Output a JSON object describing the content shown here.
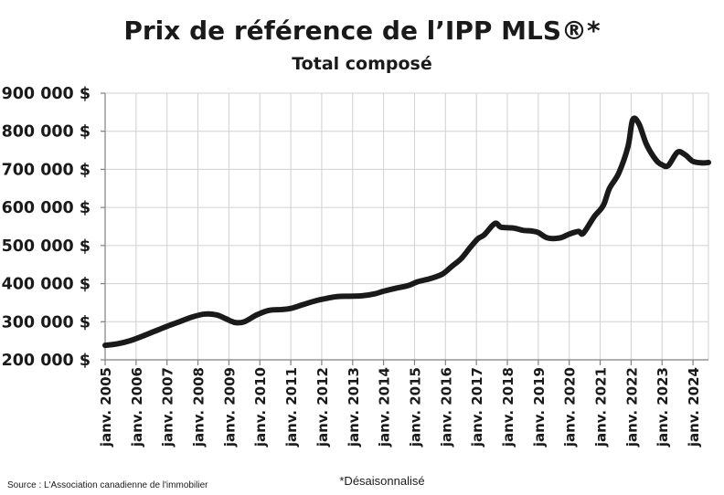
{
  "chart_data": {
    "type": "line",
    "title": "Prix de référence de l’IPP MLS®*",
    "subtitle": "Total composé",
    "xlabel": "",
    "ylabel": "",
    "ylim": [
      200000,
      900000
    ],
    "yticks": [
      200000,
      300000,
      400000,
      500000,
      600000,
      700000,
      800000,
      900000
    ],
    "ytick_labels": [
      "200 000 $",
      "300 000 $",
      "400 000 $",
      "500 000 $",
      "600 000 $",
      "700 000 $",
      "800 000 $",
      "900 000 $"
    ],
    "xlim": [
      2005.0,
      2024.5
    ],
    "xticks": [
      2005,
      2006,
      2007,
      2008,
      2009,
      2010,
      2011,
      2012,
      2013,
      2014,
      2015,
      2016,
      2017,
      2018,
      2019,
      2020,
      2021,
      2022,
      2023,
      2024
    ],
    "xtick_labels": [
      "janv. 2005",
      "janv. 2006",
      "janv. 2007",
      "janv. 2008",
      "janv. 2009",
      "janv. 2010",
      "janv. 2011",
      "janv. 2012",
      "janv. 2013",
      "janv. 2014",
      "janv. 2015",
      "janv. 2016",
      "janv. 2017",
      "janv. 2018",
      "janv. 2019",
      "janv. 2020",
      "janv. 2021",
      "janv. 2022",
      "janv. 2023",
      "janv. 2024"
    ],
    "grid": true,
    "legend": "none",
    "line_color": "#1a1a1a",
    "series": [
      {
        "x": [
          2005.0,
          2005.4,
          2005.8,
          2006.2,
          2006.6,
          2007.0,
          2007.4,
          2007.8,
          2008.2,
          2008.6,
          2008.9,
          2009.2,
          2009.5,
          2009.9,
          2010.3,
          2010.7,
          2011.0,
          2011.4,
          2011.8,
          2012.2,
          2012.5,
          2012.9,
          2013.3,
          2013.7,
          2014.0,
          2014.4,
          2014.8,
          2015.1,
          2015.5,
          2015.9,
          2016.2,
          2016.5,
          2016.8,
          2017.05,
          2017.25,
          2017.6,
          2017.8,
          2018.2,
          2018.5,
          2018.8,
          2019.0,
          2019.3,
          2019.7,
          2020.0,
          2020.3,
          2020.45,
          2020.8,
          2021.1,
          2021.3,
          2021.6,
          2021.9,
          2022.05,
          2022.25,
          2022.5,
          2022.8,
          2023.0,
          2023.2,
          2023.5,
          2023.75,
          2024.0,
          2024.3,
          2024.5
        ],
        "y": [
          238000,
          242000,
          250000,
          262000,
          275000,
          288000,
          300000,
          312000,
          320000,
          318000,
          308000,
          298000,
          300000,
          318000,
          330000,
          332000,
          335000,
          345000,
          355000,
          362000,
          366000,
          367000,
          368000,
          373000,
          380000,
          388000,
          395000,
          405000,
          413000,
          425000,
          445000,
          465000,
          495000,
          518000,
          528000,
          558000,
          548000,
          546000,
          540000,
          538000,
          534000,
          520000,
          520000,
          530000,
          537000,
          532000,
          575000,
          605000,
          650000,
          690000,
          760000,
          830000,
          820000,
          765000,
          725000,
          712000,
          710000,
          745000,
          738000,
          721000,
          717000,
          718000
        ]
      }
    ]
  },
  "footer": {
    "source": "Source : L'Association canadienne de l'immobilier",
    "footnote": "*Désaisonnalisé"
  }
}
